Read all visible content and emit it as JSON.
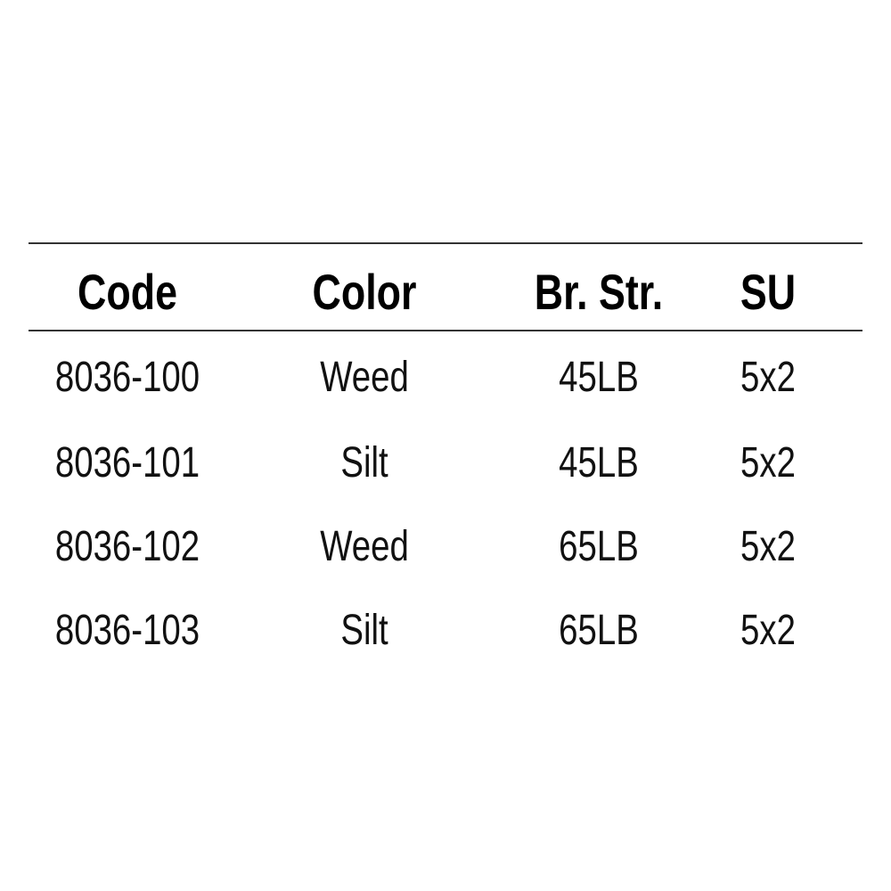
{
  "table": {
    "headers": [
      "Code",
      "Color",
      "Br. Str.",
      "SU"
    ],
    "rows": [
      [
        "8036-100",
        "Weed",
        "45LB",
        "5x2"
      ],
      [
        "8036-101",
        "Silt",
        "45LB",
        "5x2"
      ],
      [
        "8036-102",
        "Weed",
        "65LB",
        "5x2"
      ],
      [
        "8036-103",
        "Silt",
        "65LB",
        "5x2"
      ]
    ]
  }
}
